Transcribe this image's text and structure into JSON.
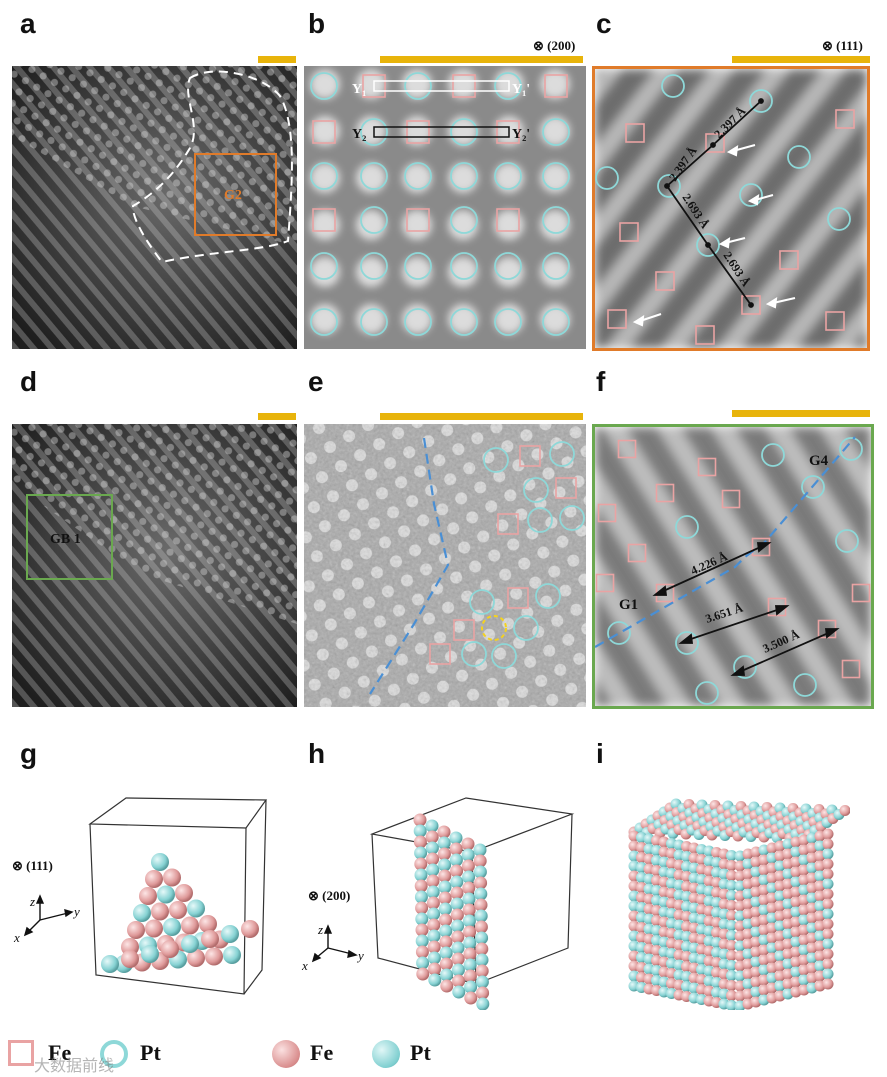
{
  "labels": {
    "a": "a",
    "b": "b",
    "c": "c",
    "d": "d",
    "e": "e",
    "f": "f",
    "g": "g",
    "h": "h",
    "i": "i"
  },
  "zone_b": "(200)",
  "zone_c": "(111)",
  "zone_g": "(111)",
  "zone_h": "(200)",
  "panel_a": {
    "region": "G2"
  },
  "panel_b": {
    "y1": "Y₁",
    "y1p": "Y₁'",
    "y2": "Y₂",
    "y2p": "Y₂'"
  },
  "panel_c": {
    "d1": "2.397 Å",
    "d2": "2.397 Å",
    "d3": "2.693 Å",
    "d4": "2.693 Å"
  },
  "panel_d": {
    "region": "GB 1"
  },
  "panel_f": {
    "g4": "G4",
    "g1": "G1",
    "d1": "4.226 Å",
    "d2": "3.651 Å",
    "d3": "3.500 Å"
  },
  "axes": {
    "x": "x",
    "y": "y",
    "z": "z"
  },
  "legend": {
    "fe": "Fe",
    "pt": "Pt",
    "fe_sphere": "Fe",
    "pt_sphere": "Pt"
  },
  "watermark": "大数据前线",
  "colors": {
    "fe": "#e9a3a3",
    "pt": "#8ed8d8",
    "scalebar": "#e8b40b",
    "frame_c": "#e07b2a",
    "frame_f": "#6aa84f",
    "grain_line": "#4a8fd4"
  }
}
